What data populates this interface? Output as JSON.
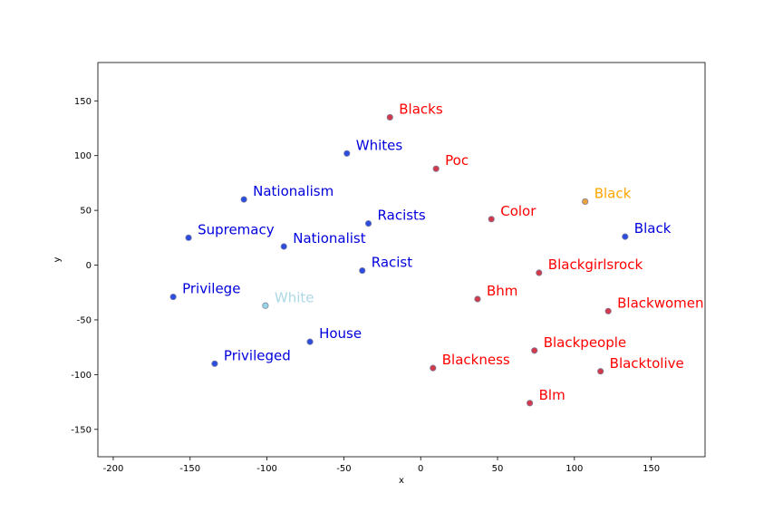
{
  "chart_data": {
    "type": "scatter",
    "title": "",
    "xlabel": "x",
    "ylabel": "y",
    "xlim": [
      -210,
      185
    ],
    "ylim": [
      -175,
      185
    ],
    "xticks": [
      -200,
      -150,
      -100,
      -50,
      0,
      50,
      100,
      150
    ],
    "yticks": [
      -150,
      -100,
      -50,
      0,
      50,
      100,
      150
    ],
    "grid": false,
    "legend": "none",
    "colors": {
      "blue_fill": "#2a4de0",
      "red_fill": "#d23a4a",
      "orange_fill": "#e8a33a",
      "lightblue_fill": "#9ad8e8",
      "marker_edge": "#7f7f9f"
    },
    "points": [
      {
        "label": "Blacks",
        "x": -20,
        "y": 135,
        "group": "red",
        "text_color": "#ff0000"
      },
      {
        "label": "Whites",
        "x": -48,
        "y": 102,
        "group": "blue",
        "text_color": "#0000dd"
      },
      {
        "label": "Poc",
        "x": 10,
        "y": 88,
        "group": "red",
        "text_color": "#ff0000"
      },
      {
        "label": "Nationalism",
        "x": -115,
        "y": 60,
        "group": "blue",
        "text_color": "#0000dd"
      },
      {
        "label": "Black",
        "x": 107,
        "y": 58,
        "group": "orange",
        "text_color": "#ffa500"
      },
      {
        "label": "Color",
        "x": 46,
        "y": 42,
        "group": "red",
        "text_color": "#ff0000"
      },
      {
        "label": "Racists",
        "x": -34,
        "y": 38,
        "group": "blue",
        "text_color": "#0000dd"
      },
      {
        "label": "Black",
        "x": 133,
        "y": 26,
        "group": "blue",
        "text_color": "#0000dd"
      },
      {
        "label": "Supremacy",
        "x": -151,
        "y": 25,
        "group": "blue",
        "text_color": "#0000dd"
      },
      {
        "label": "Nationalist",
        "x": -89,
        "y": 17,
        "group": "blue",
        "text_color": "#0000dd"
      },
      {
        "label": "Racist",
        "x": -38,
        "y": -5,
        "group": "blue",
        "text_color": "#0000dd"
      },
      {
        "label": "Blackgirlsrock",
        "x": 77,
        "y": -7,
        "group": "red",
        "text_color": "#ff0000"
      },
      {
        "label": "Privilege",
        "x": -161,
        "y": -29,
        "group": "blue",
        "text_color": "#0000dd"
      },
      {
        "label": "Bhm",
        "x": 37,
        "y": -31,
        "group": "red",
        "text_color": "#ff0000"
      },
      {
        "label": "White",
        "x": -101,
        "y": -37,
        "group": "lightblue",
        "text_color": "#add8e6"
      },
      {
        "label": "Blackwomen",
        "x": 122,
        "y": -42,
        "group": "red",
        "text_color": "#ff0000"
      },
      {
        "label": "House",
        "x": -72,
        "y": -70,
        "group": "blue",
        "text_color": "#0000dd"
      },
      {
        "label": "Blackpeople",
        "x": 74,
        "y": -78,
        "group": "red",
        "text_color": "#ff0000"
      },
      {
        "label": "Privileged",
        "x": -134,
        "y": -90,
        "group": "blue",
        "text_color": "#0000dd"
      },
      {
        "label": "Blackness",
        "x": 8,
        "y": -94,
        "group": "red",
        "text_color": "#ff0000"
      },
      {
        "label": "Blacktolive",
        "x": 117,
        "y": -97,
        "group": "red",
        "text_color": "#ff0000"
      },
      {
        "label": "Blm",
        "x": 71,
        "y": -126,
        "group": "red",
        "text_color": "#ff0000"
      }
    ]
  }
}
